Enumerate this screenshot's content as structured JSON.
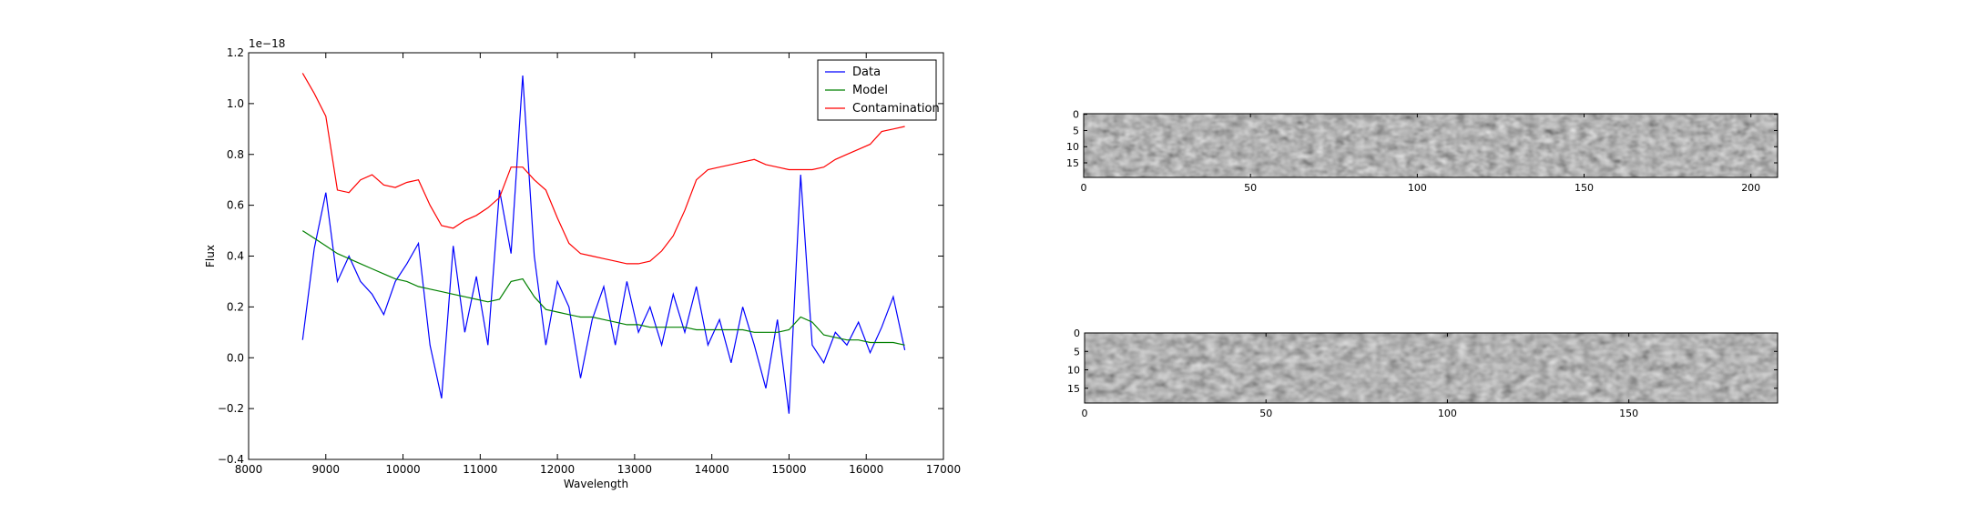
{
  "chart_data": [
    {
      "type": "line",
      "xlabel": "Wavelength",
      "ylabel": "Flux",
      "offset_label": "1e−18",
      "x": [
        8700,
        8850,
        9000,
        9150,
        9300,
        9450,
        9600,
        9750,
        9900,
        10050,
        10200,
        10350,
        10500,
        10650,
        10800,
        10950,
        11100,
        11250,
        11400,
        11550,
        11700,
        11850,
        12000,
        12150,
        12300,
        12450,
        12600,
        12750,
        12900,
        13050,
        13200,
        13350,
        13500,
        13650,
        13800,
        13950,
        14100,
        14250,
        14400,
        14550,
        14700,
        14850,
        15000,
        15150,
        15300,
        15450,
        15600,
        15750,
        15900,
        16050,
        16200,
        16350,
        16500
      ],
      "series": [
        {
          "name": "Data",
          "color": "#0000ff",
          "values": [
            0.07,
            0.43,
            0.65,
            0.3,
            0.4,
            0.3,
            0.25,
            0.17,
            0.3,
            0.37,
            0.45,
            0.05,
            -0.16,
            0.44,
            0.1,
            0.32,
            0.05,
            0.66,
            0.41,
            1.11,
            0.4,
            0.05,
            0.3,
            0.2,
            -0.08,
            0.15,
            0.28,
            0.05,
            0.3,
            0.1,
            0.2,
            0.05,
            0.25,
            0.1,
            0.28,
            0.05,
            0.15,
            -0.02,
            0.2,
            0.05,
            -0.12,
            0.15,
            -0.22,
            0.72,
            0.05,
            -0.02,
            0.1,
            0.05,
            0.14,
            0.02,
            0.12,
            0.24,
            0.03
          ]
        },
        {
          "name": "Model",
          "color": "#008000",
          "values": [
            0.5,
            0.47,
            0.44,
            0.41,
            0.39,
            0.37,
            0.35,
            0.33,
            0.31,
            0.3,
            0.28,
            0.27,
            0.26,
            0.25,
            0.24,
            0.23,
            0.22,
            0.23,
            0.3,
            0.31,
            0.24,
            0.19,
            0.18,
            0.17,
            0.16,
            0.16,
            0.15,
            0.14,
            0.13,
            0.13,
            0.12,
            0.12,
            0.12,
            0.12,
            0.11,
            0.11,
            0.11,
            0.11,
            0.11,
            0.1,
            0.1,
            0.1,
            0.11,
            0.16,
            0.14,
            0.09,
            0.08,
            0.07,
            0.07,
            0.06,
            0.06,
            0.06,
            0.05
          ]
        },
        {
          "name": "Contamination",
          "color": "#ff0000",
          "values": [
            1.12,
            1.04,
            0.95,
            0.66,
            0.65,
            0.7,
            0.72,
            0.68,
            0.67,
            0.69,
            0.7,
            0.6,
            0.52,
            0.51,
            0.54,
            0.56,
            0.59,
            0.63,
            0.75,
            0.75,
            0.7,
            0.66,
            0.55,
            0.45,
            0.41,
            0.4,
            0.39,
            0.38,
            0.37,
            0.37,
            0.38,
            0.42,
            0.48,
            0.58,
            0.7,
            0.74,
            0.75,
            0.76,
            0.77,
            0.78,
            0.76,
            0.75,
            0.74,
            0.74,
            0.74,
            0.75,
            0.78,
            0.8,
            0.82,
            0.84,
            0.89,
            0.9,
            0.91
          ]
        }
      ],
      "xlim": [
        8000,
        17000
      ],
      "ylim": [
        -0.4,
        1.2
      ],
      "xticks": [
        8000,
        9000,
        10000,
        11000,
        12000,
        13000,
        14000,
        15000,
        16000,
        17000
      ],
      "yticks": [
        {
          "value": -0.4,
          "label": "−0.4"
        },
        {
          "value": -0.2,
          "label": "−0.2"
        },
        {
          "value": 0,
          "label": "0.0"
        },
        0.2,
        0.4,
        0.6,
        0.8,
        {
          "value": 1,
          "label": "1.0"
        },
        1.2
      ],
      "legend": "upper right"
    },
    {
      "type": "image",
      "xlim": [
        0,
        208
      ],
      "ylim": [
        19.5,
        -0.2
      ],
      "xticks": [
        0,
        50,
        100,
        150,
        200
      ],
      "yticks": [
        0,
        5,
        10,
        15
      ]
    },
    {
      "type": "image",
      "xlim": [
        0,
        191
      ],
      "ylim": [
        19,
        0
      ],
      "xticks": [
        0,
        50,
        100,
        150
      ],
      "yticks": [
        0,
        5,
        10,
        15
      ]
    }
  ]
}
